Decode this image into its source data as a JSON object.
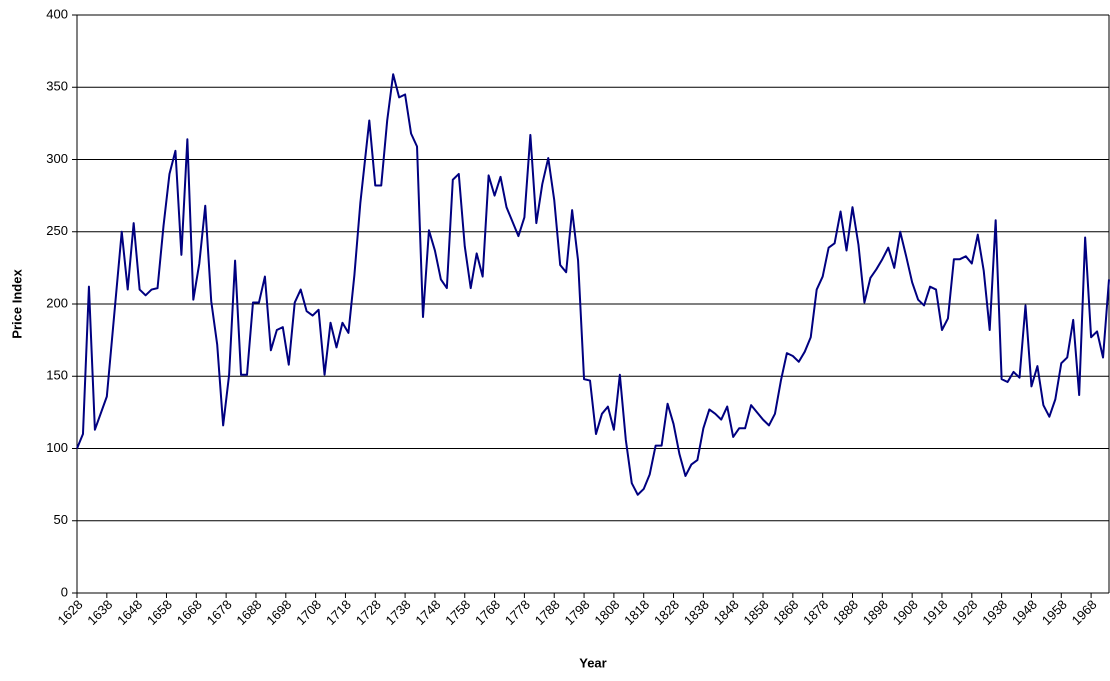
{
  "chart_data": {
    "type": "line",
    "x_label": "Year",
    "y_label": "Price Index",
    "x": [
      1628,
      1630,
      1632,
      1634,
      1638,
      1643,
      1645,
      1647,
      1649,
      1651,
      1653,
      1655,
      1657,
      1659,
      1661,
      1663,
      1665,
      1667,
      1669,
      1671,
      1673,
      1675,
      1677,
      1679,
      1681,
      1683,
      1685,
      1687,
      1689,
      1691,
      1693,
      1695,
      1697,
      1699,
      1701,
      1703,
      1705,
      1707,
      1709,
      1711,
      1713,
      1715,
      1717,
      1719,
      1721,
      1723,
      1726,
      1728,
      1730,
      1732,
      1734,
      1736,
      1738,
      1740,
      1742,
      1744,
      1746,
      1748,
      1750,
      1752,
      1754,
      1756,
      1758,
      1760,
      1762,
      1764,
      1766,
      1768,
      1770,
      1772,
      1774,
      1776,
      1778,
      1780,
      1782,
      1784,
      1786,
      1788,
      1790,
      1792,
      1794,
      1796,
      1798,
      1800,
      1802,
      1804,
      1806,
      1808,
      1810,
      1812,
      1814,
      1816,
      1818,
      1820,
      1822,
      1824,
      1826,
      1828,
      1830,
      1832,
      1834,
      1836,
      1838,
      1840,
      1842,
      1844,
      1846,
      1848,
      1850,
      1852,
      1854,
      1856,
      1858,
      1860,
      1862,
      1864,
      1866,
      1868,
      1870,
      1872,
      1874,
      1876,
      1878,
      1880,
      1882,
      1884,
      1886,
      1888,
      1890,
      1892,
      1894,
      1896,
      1898,
      1900,
      1902,
      1904,
      1906,
      1908,
      1910,
      1912,
      1914,
      1916,
      1918,
      1920,
      1922,
      1924,
      1926,
      1928,
      1930,
      1932,
      1934,
      1936,
      1938,
      1940,
      1942,
      1944,
      1946,
      1948,
      1950,
      1952,
      1954,
      1956,
      1958,
      1960,
      1962,
      1964,
      1966,
      1968,
      1970,
      1972,
      1974
    ],
    "series": [
      {
        "name": "Price Index",
        "color": "#000080",
        "values": [
          100,
          110,
          212,
          113,
          136,
          250,
          210,
          256,
          210,
          206,
          210,
          211,
          254,
          290,
          306,
          234,
          314,
          203,
          228,
          268,
          202,
          172,
          116,
          151,
          230,
          151,
          151,
          201,
          201,
          219,
          168,
          182,
          184,
          158,
          201,
          210,
          195,
          192,
          196,
          151,
          187,
          170,
          187,
          180,
          220,
          270,
          327,
          282,
          282,
          327,
          359,
          343,
          345,
          318,
          309,
          191,
          251,
          237,
          217,
          211,
          286,
          290,
          240,
          211,
          235,
          219,
          289,
          275,
          288,
          267,
          257,
          247,
          260,
          317,
          256,
          283,
          301,
          272,
          227,
          222,
          265,
          230,
          148,
          147,
          110,
          124,
          129,
          113,
          151,
          106,
          76,
          68,
          72,
          82,
          102,
          102,
          131,
          117,
          96,
          81,
          89,
          92,
          114,
          127,
          124,
          120,
          129,
          108,
          114,
          114,
          130,
          125,
          120,
          116,
          124,
          147,
          166,
          164,
          160,
          167,
          177,
          210,
          219,
          239,
          242,
          264,
          237,
          267,
          241,
          201,
          218,
          224,
          231,
          239,
          225,
          250,
          233,
          215,
          203,
          199,
          212,
          210,
          182,
          190,
          231,
          231,
          233,
          228,
          248,
          223,
          182,
          258,
          148,
          146,
          153,
          149,
          199,
          143,
          157,
          130,
          122,
          134,
          159,
          163,
          189,
          137,
          246,
          177,
          181,
          163,
          217
        ]
      }
    ],
    "xlim": [
      1628,
      1974
    ],
    "xticks": [
      1628,
      1638,
      1648,
      1658,
      1668,
      1678,
      1688,
      1698,
      1708,
      1718,
      1728,
      1738,
      1748,
      1758,
      1768,
      1778,
      1788,
      1798,
      1808,
      1818,
      1828,
      1838,
      1848,
      1858,
      1868,
      1878,
      1888,
      1898,
      1908,
      1918,
      1928,
      1938,
      1948,
      1958,
      1968
    ],
    "ylim": [
      0,
      400
    ],
    "yticks": [
      0,
      50,
      100,
      150,
      200,
      250,
      300,
      350,
      400
    ],
    "grid": true
  }
}
